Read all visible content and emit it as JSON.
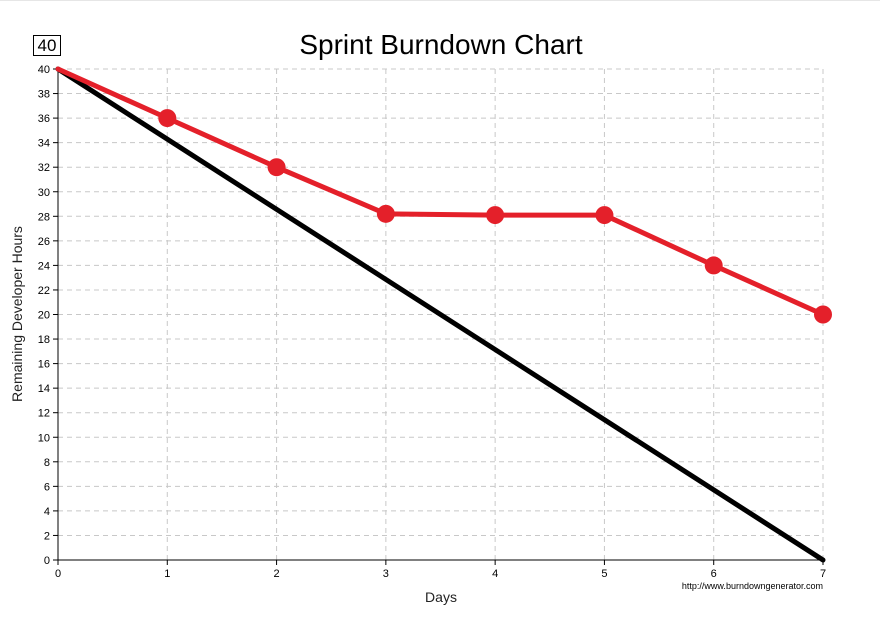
{
  "badge_value": "40",
  "chart_data": {
    "type": "line",
    "title": "Sprint Burndown Chart",
    "xlabel": "Days",
    "ylabel": "Remaining Developer Hours",
    "x": [
      0,
      1,
      2,
      3,
      4,
      5,
      6,
      7
    ],
    "xlim": [
      0,
      7
    ],
    "ylim": [
      0,
      40
    ],
    "x_ticks": [
      "0",
      "1",
      "2",
      "3",
      "4",
      "5",
      "6",
      "7"
    ],
    "y_ticks": [
      "0",
      "2",
      "4",
      "6",
      "8",
      "10",
      "12",
      "14",
      "16",
      "18",
      "20",
      "22",
      "24",
      "26",
      "28",
      "30",
      "32",
      "34",
      "36",
      "38",
      "40"
    ],
    "grid": true,
    "series": [
      {
        "key": "ideal",
        "color": "#000000",
        "values": [
          40,
          null,
          null,
          null,
          null,
          null,
          null,
          0
        ],
        "markers": false
      },
      {
        "key": "actual",
        "color": "#e4202a",
        "values": [
          40,
          36,
          32,
          28.2,
          28.1,
          28.1,
          24,
          20
        ],
        "markers": true
      }
    ],
    "credit": "http://www.burndowngenerator.com"
  }
}
